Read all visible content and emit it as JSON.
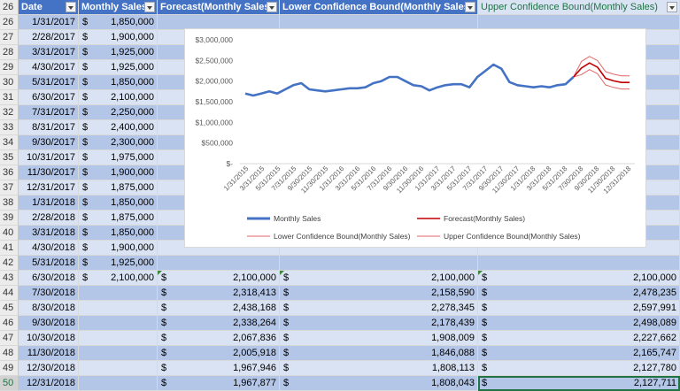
{
  "columns": [
    "Date",
    "Monthly Sales",
    "Forecast(Monthly Sales)",
    "Lower Confidence Bound(Monthly Sales)",
    "Upper Confidence Bound(Monthly Sales)"
  ],
  "header_row_number": "26",
  "currency_symbol": "$",
  "history_rows": [
    {
      "row": "27",
      "date": "2/28/2017",
      "sales": "1,900,000"
    },
    {
      "row": "28",
      "date": "3/31/2017",
      "sales": "1,925,000"
    },
    {
      "row": "29",
      "date": "4/30/2017",
      "sales": "1,925,000"
    },
    {
      "row": "30",
      "date": "5/31/2017",
      "sales": "1,850,000"
    },
    {
      "row": "31",
      "date": "6/30/2017",
      "sales": "2,100,000"
    },
    {
      "row": "32",
      "date": "7/31/2017",
      "sales": "2,250,000"
    },
    {
      "row": "33",
      "date": "8/31/2017",
      "sales": "2,400,000"
    },
    {
      "row": "34",
      "date": "9/30/2017",
      "sales": "2,300,000"
    },
    {
      "row": "35",
      "date": "10/31/2017",
      "sales": "1,975,000"
    },
    {
      "row": "36",
      "date": "11/30/2017",
      "sales": "1,900,000"
    },
    {
      "row": "37",
      "date": "12/31/2017",
      "sales": "1,875,000"
    },
    {
      "row": "38",
      "date": "1/31/2018",
      "sales": "1,850,000"
    },
    {
      "row": "39",
      "date": "2/28/2018",
      "sales": "1,875,000"
    },
    {
      "row": "40",
      "date": "3/31/2018",
      "sales": "1,850,000"
    },
    {
      "row": "41",
      "date": "4/30/2018",
      "sales": "1,900,000"
    },
    {
      "row": "42",
      "date": "5/31/2018",
      "sales": "1,925,000"
    }
  ],
  "first_row": {
    "row": "26",
    "date": "1/31/2017",
    "sales": "1,850,000"
  },
  "forecast_rows": [
    {
      "row": "43",
      "date": "6/30/2018",
      "sales": "2,100,000",
      "forecast": "2,100,000",
      "lower": "2,100,000",
      "upper": "2,100,000"
    },
    {
      "row": "44",
      "date": "7/30/2018",
      "sales": "",
      "forecast": "2,318,413",
      "lower": "2,158,590",
      "upper": "2,478,235"
    },
    {
      "row": "45",
      "date": "8/30/2018",
      "sales": "",
      "forecast": "2,438,168",
      "lower": "2,278,345",
      "upper": "2,597,991"
    },
    {
      "row": "46",
      "date": "9/30/2018",
      "sales": "",
      "forecast": "2,338,264",
      "lower": "2,178,439",
      "upper": "2,498,089"
    },
    {
      "row": "47",
      "date": "10/30/2018",
      "sales": "",
      "forecast": "2,067,836",
      "lower": "1,908,009",
      "upper": "2,227,662"
    },
    {
      "row": "48",
      "date": "11/30/2018",
      "sales": "",
      "forecast": "2,005,918",
      "lower": "1,846,088",
      "upper": "2,165,747"
    },
    {
      "row": "49",
      "date": "12/30/2018",
      "sales": "",
      "forecast": "1,967,946",
      "lower": "1,808,113",
      "upper": "2,127,780"
    },
    {
      "row": "50",
      "date": "12/31/2018",
      "sales": "",
      "forecast": "1,967,877",
      "lower": "1,808,043",
      "upper": "2,127,711"
    }
  ],
  "colors": {
    "header": "#4472c4",
    "band_dark": "#b4c6e7",
    "band_light": "#dae3f3",
    "sales_line": "#4472c4",
    "forecast_line": "#c00000",
    "bound_line": "#e06666",
    "selection": "#217346"
  },
  "chart_data": {
    "type": "line",
    "yticks": [
      "$3,000,000",
      "$2,500,000",
      "$2,000,000",
      "$1,500,000",
      "$1,000,000",
      "$500,000",
      "$-"
    ],
    "ylim": [
      0,
      3000000
    ],
    "xticks": [
      "1/31/2015",
      "3/31/2015",
      "5/31/2015",
      "7/31/2015",
      "9/30/2015",
      "11/30/2015",
      "1/31/2016",
      "3/31/2016",
      "5/31/2016",
      "7/31/2016",
      "9/30/2016",
      "11/30/2016",
      "1/31/2017",
      "3/31/2017",
      "5/31/2017",
      "7/31/2017",
      "9/30/2017",
      "11/30/2017",
      "1/31/2018",
      "3/31/2018",
      "5/31/2018",
      "7/30/2018",
      "9/30/2018",
      "11/30/2018",
      "12/31/2018"
    ],
    "legend": [
      "Monthly Sales",
      "Forecast(Monthly Sales)",
      "Lower Confidence Bound(Monthly Sales)",
      "Upper Confidence Bound(Monthly Sales)"
    ],
    "series": [
      {
        "name": "Monthly Sales",
        "values": [
          1700000,
          1650000,
          1700000,
          1750000,
          1700000,
          1800000,
          1900000,
          1950000,
          1800000,
          1775000,
          1750000,
          1775000,
          1800000,
          1825000,
          1825000,
          1850000,
          1950000,
          2000000,
          2100000,
          2100000,
          2000000,
          1900000,
          1875000,
          1775000,
          1850000,
          1900000,
          1925000,
          1925000,
          1850000,
          2100000,
          2250000,
          2400000,
          2300000,
          1975000,
          1900000,
          1875000,
          1850000,
          1875000,
          1850000,
          1900000,
          1925000,
          2100000
        ]
      },
      {
        "name": "Forecast(Monthly Sales)",
        "values": [
          2100000,
          2318413,
          2438168,
          2338264,
          2067836,
          2005918,
          1967946,
          1967877
        ]
      },
      {
        "name": "Lower Confidence Bound(Monthly Sales)",
        "values": [
          2100000,
          2158590,
          2278345,
          2178439,
          1908009,
          1846088,
          1808113,
          1808043
        ]
      },
      {
        "name": "Upper Confidence Bound(Monthly Sales)",
        "values": [
          2100000,
          2478235,
          2597991,
          2498089,
          2227662,
          2165747,
          2127780,
          2127711
        ]
      }
    ]
  }
}
